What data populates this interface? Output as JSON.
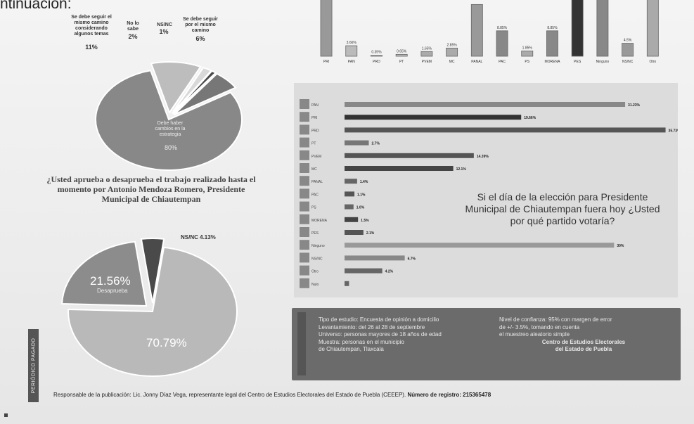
{
  "top_fragment": "ntinuación:",
  "pie1": {
    "label_small_1": "Se debe seguir el mismo camino considerando algunos temas",
    "value_small_1": "11%",
    "label_small_2": "No lo sabe",
    "value_small_2": "2%",
    "label_small_3": "NS/NC",
    "value_small_3": "1%",
    "label_small_4": "Se debe seguir por el mismo camino",
    "value_small_4": "6%",
    "label_big": "Debe haber cambios en la estrategia",
    "value_big": "80%"
  },
  "question1": "¿Usted aprueba o desaprueba el trabajo realizado hasta el momento por Antonio Mendoza Romero, Presidente Municipal de Chiautempan",
  "pie2": {
    "nsnc_label": "NS/NC 4.13%",
    "disapprove_value": "21.56%",
    "disapprove_label": "Desaprueba",
    "approve_value": "70.79%"
  },
  "question2": "Si el día de la elección para Presidente Municipal de Chiautempan fuera hoy ¿Usted por qué partido votaría?",
  "info_box": {
    "left": [
      "Tipo de estudio: Encuesta de opinión a domicilio",
      "Levantamiento: del 26 al 28 de septiembre",
      "Universo: personas mayores de 18 años de edad",
      "Muestra: personas en el municipio",
      "de Chiautempan, Tlaxcala"
    ],
    "right": [
      "Nivel de confianza: 95% con margen de error",
      "de +/- 3.5%, tomando en cuenta",
      "el muestreo aleatorio simple",
      "Centro de Estudios Electorales",
      "del Estado de Puebla"
    ]
  },
  "side_tab": "PERIÓDICO PAGADO",
  "footer": {
    "text": "Responsable de la publicación: Lic. Jonny Díaz Vega, representante legal del Centro de Estudios Electorales del Estado de Puebla (CEEEP).",
    "registry": "Número de registro: 215365478"
  },
  "chart_data": [
    {
      "type": "pie",
      "title": "",
      "slices": [
        {
          "label": "Debe haber cambios en la estrategia",
          "value": 80
        },
        {
          "label": "Se debe seguir el mismo camino considerando algunos temas",
          "value": 11
        },
        {
          "label": "No lo sabe",
          "value": 2
        },
        {
          "label": "NS/NC",
          "value": 1
        },
        {
          "label": "Se debe seguir por el mismo camino",
          "value": 6
        }
      ]
    },
    {
      "type": "pie",
      "title": "¿Usted aprueba o desaprueba el trabajo realizado hasta el momento por Antonio Mendoza Romero, Presidente Municipal de Chiautempan",
      "slices": [
        {
          "label": "Aprueba",
          "value": 70.79
        },
        {
          "label": "Desaprueba",
          "value": 21.56
        },
        {
          "label": "NS/NC",
          "value": 4.13
        }
      ]
    },
    {
      "type": "bar",
      "orientation": "vertical",
      "title": "",
      "categories": [
        "PRI",
        "PAN",
        "PRD",
        "PT",
        "PVEM",
        "MC",
        "PANAL",
        "PAC",
        "PS",
        "MORENA",
        "PES",
        "Ninguno",
        "NS/NC",
        "Otro"
      ],
      "values": [
        22,
        3.66,
        0.35,
        0.65,
        1.65,
        2.85,
        18,
        8.85,
        1.85,
        8.85,
        21,
        21,
        4.5,
        21
      ],
      "value_labels": [
        "",
        "3.66%",
        "0.35%",
        "0.65%",
        "1.65%",
        "2.85%",
        "",
        "8.85%",
        "1.85%",
        "8.85%",
        "",
        "",
        "4.5%",
        ""
      ],
      "ylim": [
        0,
        22
      ]
    },
    {
      "type": "bar",
      "orientation": "horizontal",
      "title": "Si el día de la elección para Presidente Municipal de Chiautempan fuera hoy ¿Usted por qué partido votaría?",
      "categories": [
        "PAN",
        "PRI",
        "PRD",
        "PT",
        "PVEM",
        "MC",
        "PANAL",
        "PAC",
        "PS",
        "MORENA",
        "PES",
        "Ninguno",
        "NS/NC",
        "Otro",
        "Nulo"
      ],
      "values": [
        31.23,
        19.66,
        35.73,
        2.7,
        14.39,
        12.1,
        1.4,
        1.1,
        1.0,
        1.5,
        2.1,
        30,
        6.7,
        4.2,
        0.5
      ],
      "value_labels": [
        "31.23%",
        "19.66%",
        "35.73%",
        "2.7%",
        "14.39%",
        "12.1%",
        "1.4%",
        "1.1%",
        "1.0%",
        "1.5%",
        "2.1%",
        "30%",
        "6.7%",
        "4.2%",
        ""
      ],
      "colors": [
        "#888",
        "#333",
        "#555",
        "#777",
        "#555",
        "#444",
        "#666",
        "#555",
        "#666",
        "#444",
        "#555",
        "#999",
        "#888",
        "#666",
        "#666"
      ],
      "xlim": [
        0,
        36
      ]
    }
  ]
}
